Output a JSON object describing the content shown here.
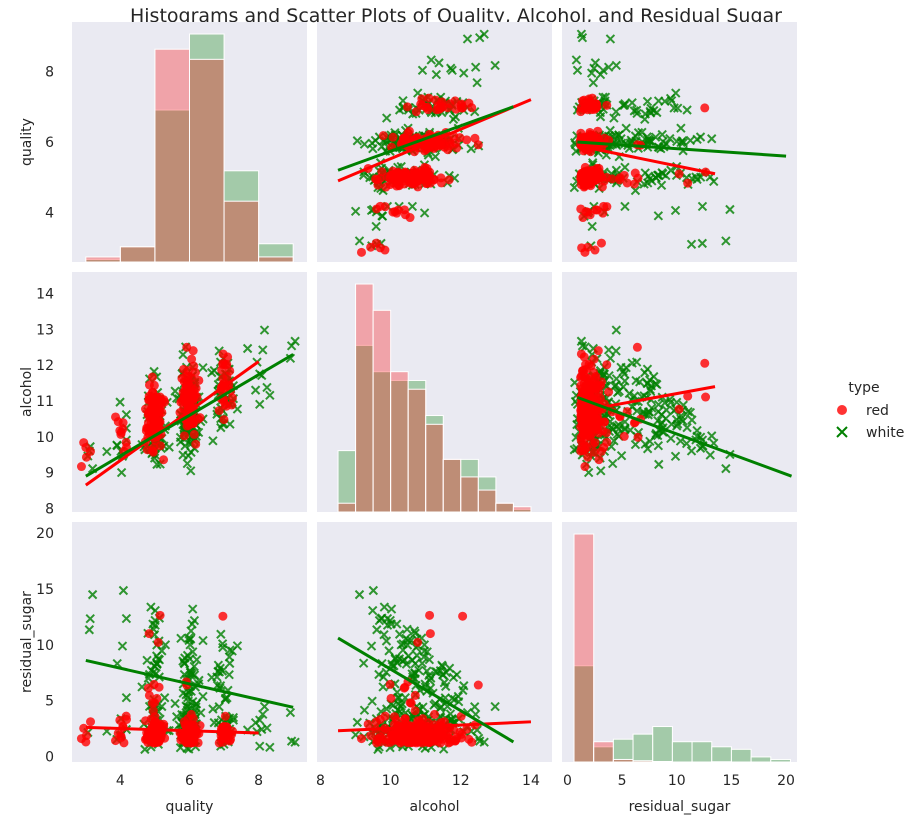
{
  "chart_data": {
    "type": "scatter",
    "title": "Histograms and Scatter Plots of Quality, Alcohol, and Residual Sugar",
    "variables": [
      {
        "name": "quality",
        "range": [
          2.6,
          9.4
        ],
        "ticks": [
          4,
          6,
          8
        ]
      },
      {
        "name": "alcohol",
        "range": [
          7.9,
          14.6
        ],
        "ticks": [
          8,
          9,
          10,
          11,
          12,
          13,
          14
        ],
        "xticks": [
          8,
          10,
          12,
          14
        ]
      },
      {
        "name": "residual_sugar",
        "range": [
          -0.5,
          21
        ],
        "ticks": [
          0,
          5,
          10,
          15,
          20
        ],
        "xticks": [
          0,
          5,
          10,
          15,
          20
        ]
      }
    ],
    "legend": {
      "title": "type",
      "position": "right",
      "entries": [
        {
          "label": "red",
          "color": "#ff0000",
          "marker": "circle"
        },
        {
          "label": "white",
          "color": "#008000",
          "marker": "x"
        }
      ]
    },
    "diag_histograms": {
      "quality": {
        "bins": [
          3,
          4,
          5,
          6,
          7,
          8,
          9
        ],
        "red": [
          0.01,
          0.03,
          0.42,
          0.4,
          0.12,
          0.01,
          0
        ],
        "white": [
          0.005,
          0.03,
          0.3,
          0.45,
          0.18,
          0.036,
          0.001
        ]
      },
      "alcohol": {
        "bins": [
          8.5,
          9,
          9.5,
          10,
          10.5,
          11,
          11.5,
          12,
          12.5,
          13,
          13.5,
          14
        ],
        "red": [
          0.01,
          0.26,
          0.23,
          0.16,
          0.14,
          0.1,
          0.06,
          0.04,
          0.025,
          0.01,
          0.006
        ],
        "white": [
          0.07,
          0.19,
          0.16,
          0.15,
          0.15,
          0.11,
          0.06,
          0.06,
          0.04,
          0.01,
          0.003
        ]
      },
      "residual_sugar": {
        "bins": [
          0.6,
          2.4,
          4.2,
          6.0,
          7.8,
          9.6,
          11.4,
          13.2,
          15.0,
          16.8,
          18.6,
          20.4
        ],
        "red": [
          0.9,
          0.08,
          0.01,
          0.005,
          0.002,
          0,
          0,
          0.001,
          0,
          0,
          0
        ],
        "white": [
          0.38,
          0.06,
          0.09,
          0.11,
          0.14,
          0.08,
          0.08,
          0.06,
          0.05,
          0.02,
          0.01
        ]
      }
    },
    "regression": {
      "quality_vs_alcohol": {
        "red": [
          [
            3,
            8.65
          ],
          [
            8,
            12.1
          ]
        ],
        "white": [
          [
            3,
            8.9
          ],
          [
            9,
            12.3
          ]
        ]
      },
      "quality_vs_residual_sugar": {
        "red": [
          [
            3,
            2.6
          ],
          [
            8,
            2.1
          ]
        ],
        "white": [
          [
            3,
            8.6
          ],
          [
            9,
            4.4
          ]
        ]
      },
      "alcohol_vs_quality": {
        "red": [
          [
            8.5,
            4.9
          ],
          [
            14,
            7.2
          ]
        ],
        "white": [
          [
            8.5,
            5.2
          ],
          [
            13.5,
            7.0
          ]
        ]
      },
      "alcohol_vs_residual_sugar": {
        "red": [
          [
            8.5,
            2.3
          ],
          [
            14,
            3.1
          ]
        ],
        "white": [
          [
            8.5,
            10.6
          ],
          [
            13.5,
            1.3
          ]
        ]
      },
      "residual_sugar_vs_quality": {
        "red": [
          [
            0.9,
            5.9
          ],
          [
            13.5,
            5.1
          ]
        ],
        "white": [
          [
            0.9,
            6.0
          ],
          [
            20,
            5.6
          ]
        ]
      },
      "residual_sugar_vs_alcohol": {
        "red": [
          [
            0.9,
            10.7
          ],
          [
            13.5,
            11.4
          ]
        ],
        "white": [
          [
            0.9,
            11.1
          ],
          [
            20.5,
            8.9
          ]
        ]
      }
    },
    "sampling": {
      "red": {
        "quality": [
          3,
          8
        ],
        "alcohol": [
          8.5,
          14.2
        ],
        "residual_sugar": [
          0.9,
          13.5
        ]
      },
      "white": {
        "quality": [
          3,
          9
        ],
        "alcohol": [
          8.5,
          14.0
        ],
        "residual_sugar": [
          0.6,
          20.5
        ]
      }
    }
  }
}
